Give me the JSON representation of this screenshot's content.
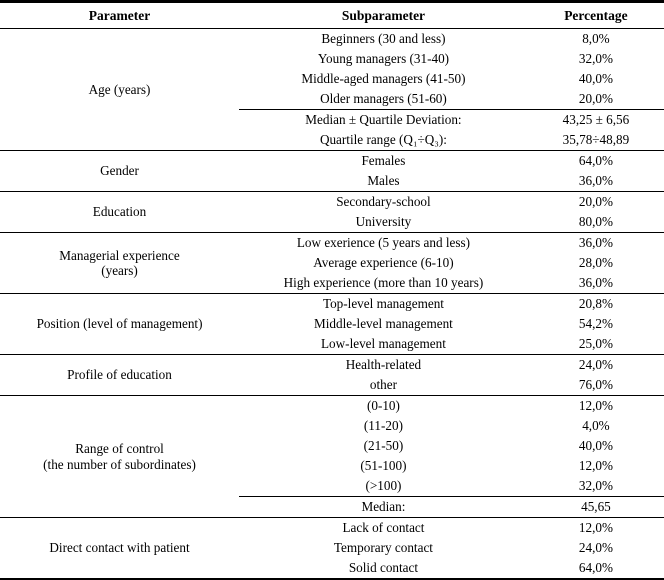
{
  "colors": {
    "text": "#000000",
    "background": "#ffffff",
    "rule": "#000000"
  },
  "table": {
    "headers": [
      "Parameter",
      "Subparameter",
      "Percentage"
    ],
    "sections": [
      {
        "parameter": "Age (years)",
        "rows": [
          {
            "sub": "Beginners (30 and less)",
            "pct": "8,0%"
          },
          {
            "sub": "Young managers (31-40)",
            "pct": "32,0%"
          },
          {
            "sub": "Middle-aged managers (41-50)",
            "pct": "40,0%"
          },
          {
            "sub": "Older managers (51-60)",
            "pct": "20,0%"
          }
        ],
        "stats": [
          {
            "sub": "Median ± Quartile Deviation:",
            "pct": "43,25 ± 6,56"
          },
          {
            "sub": "Quartile range (Q₁÷Q₃):",
            "pct": "35,78÷48,89"
          }
        ]
      },
      {
        "parameter": "Gender",
        "rows": [
          {
            "sub": "Females",
            "pct": "64,0%"
          },
          {
            "sub": "Males",
            "pct": "36,0%"
          }
        ],
        "stats": []
      },
      {
        "parameter": "Education",
        "rows": [
          {
            "sub": "Secondary-school",
            "pct": "20,0%"
          },
          {
            "sub": "University",
            "pct": "80,0%"
          }
        ],
        "stats": []
      },
      {
        "parameter": "Managerial experience\n(years)",
        "rows": [
          {
            "sub": "Low exerience (5 years and less)",
            "pct": "36,0%"
          },
          {
            "sub": "Average experience (6-10)",
            "pct": "28,0%"
          },
          {
            "sub": "High experience (more than 10 years)",
            "pct": "36,0%"
          }
        ],
        "stats": []
      },
      {
        "parameter": "Position (level of management)",
        "rows": [
          {
            "sub": "Top-level management",
            "pct": "20,8%"
          },
          {
            "sub": "Middle-level management",
            "pct": "54,2%"
          },
          {
            "sub": "Low-level management",
            "pct": "25,0%"
          }
        ],
        "stats": []
      },
      {
        "parameter": "Profile of education",
        "rows": [
          {
            "sub": "Health-related",
            "pct": "24,0%"
          },
          {
            "sub": "other",
            "pct": "76,0%"
          }
        ],
        "stats": []
      },
      {
        "parameter": "Range of control\n(the number of subordinates)",
        "rows": [
          {
            "sub": "(0-10)",
            "pct": "12,0%"
          },
          {
            "sub": "(11-20)",
            "pct": "4,0%"
          },
          {
            "sub": "(21-50)",
            "pct": "40,0%"
          },
          {
            "sub": "(51-100)",
            "pct": "12,0%"
          },
          {
            "sub": "(>100)",
            "pct": "32,0%"
          }
        ],
        "stats": [
          {
            "sub": "Median:",
            "pct": "45,65"
          }
        ]
      },
      {
        "parameter": "Direct contact with patient",
        "rows": [
          {
            "sub": "Lack of contact",
            "pct": "12,0%"
          },
          {
            "sub": "Temporary contact",
            "pct": "24,0%"
          },
          {
            "sub": "Solid contact",
            "pct": "64,0%"
          }
        ],
        "stats": []
      }
    ]
  }
}
